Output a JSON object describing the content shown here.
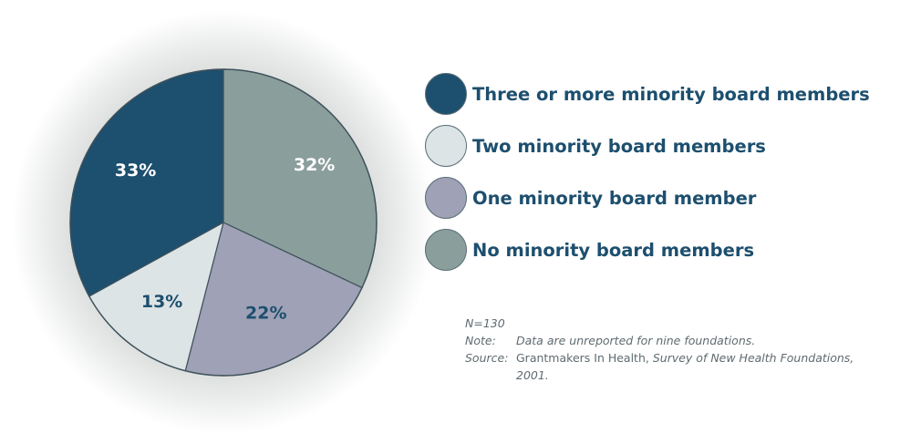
{
  "chart_data": {
    "type": "pie",
    "slices": [
      {
        "name": "No minority board members",
        "value": 32,
        "label": "32%",
        "color": "#8a9e9b",
        "label_color": "#ffffff"
      },
      {
        "name": "One minority board member",
        "value": 22,
        "label": "22%",
        "color": "#9fa1b6",
        "label_color": "#1d4f6e"
      },
      {
        "name": "Two minority board members",
        "value": 13,
        "label": "13%",
        "color": "#dde4e6",
        "label_color": "#1d4f6e"
      },
      {
        "name": "Three or more minority board members",
        "value": 33,
        "label": "33%",
        "color": "#1d4f6e",
        "label_color": "#ffffff"
      }
    ],
    "legend": {
      "placement": "right",
      "items": [
        {
          "label": "Three or more minority board members",
          "color": "#1d4f6e"
        },
        {
          "label": "Two minority board members",
          "color": "#dde4e6"
        },
        {
          "label": "One minority board member",
          "color": "#9fa1b6"
        },
        {
          "label": "No minority board members",
          "color": "#8a9e9b"
        }
      ]
    }
  },
  "notes": {
    "n": "N=130",
    "note_key": "Note:",
    "note_text": "Data are unreported for nine foundations.",
    "source_key": "Source:",
    "source_plain": "Grantmakers In Health, ",
    "source_title": "Survey of New Health Foundations,",
    "source_year": "2001."
  }
}
